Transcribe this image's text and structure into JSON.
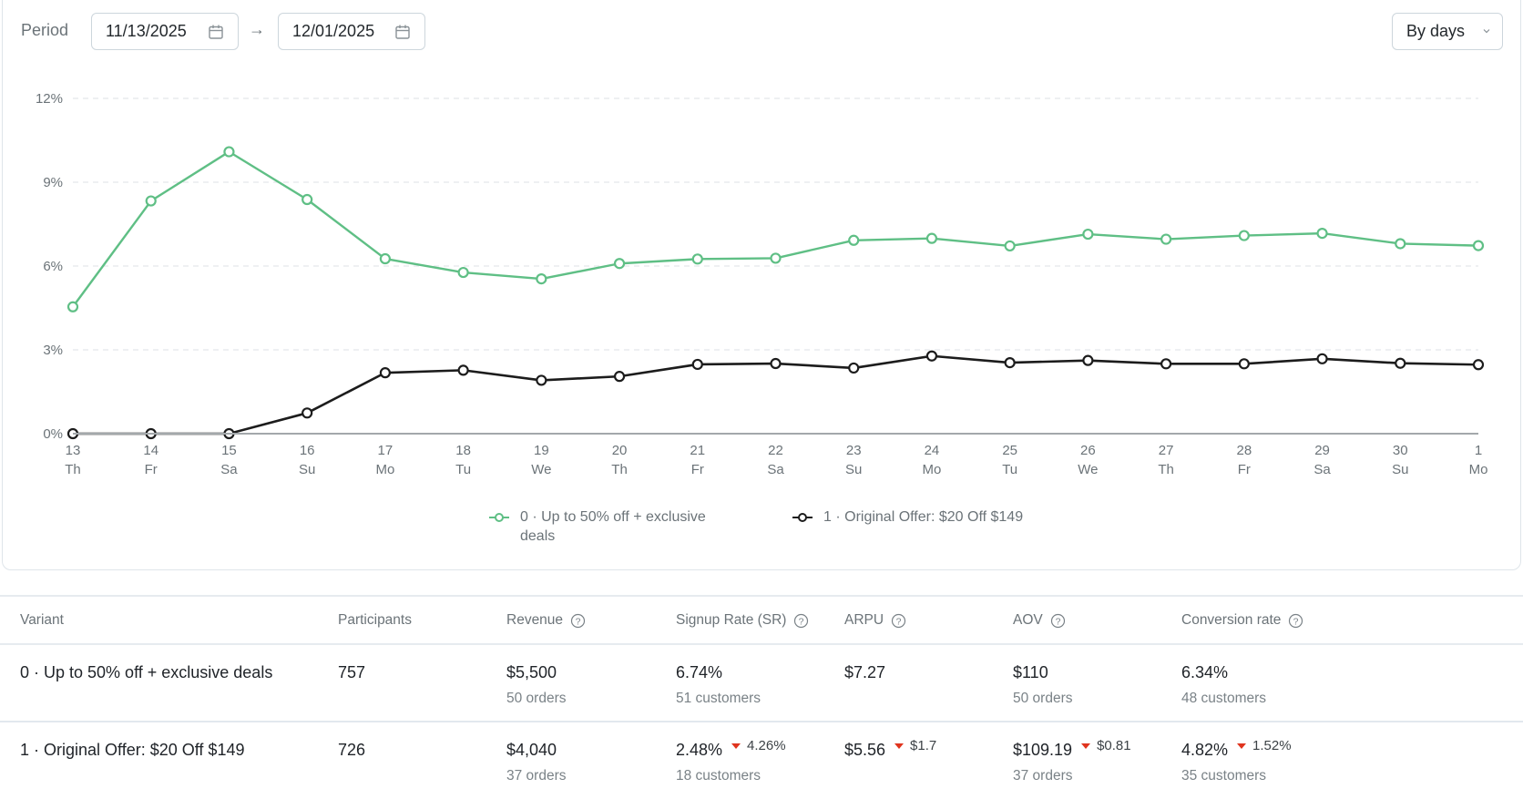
{
  "filters": {
    "period_label": "Period",
    "date_from": "11/13/2025",
    "date_to": "12/01/2025",
    "range_separator": "→",
    "granularity": "By days",
    "calendar_icon": "calendar-icon",
    "dropdown_icon": "chevron-down-icon"
  },
  "colors": {
    "variant_0": "#5fbf85",
    "variant_1": "#1c1c1c",
    "negative_delta": "#e0341e",
    "grid": "#e3e7ea",
    "axis": "#a3a8ab"
  },
  "chart_data": {
    "type": "line",
    "title": "",
    "xlabel": "",
    "ylabel": "",
    "ylim": [
      0,
      12
    ],
    "yticks": [
      "0%",
      "3%",
      "6%",
      "9%",
      "12%"
    ],
    "ytick_values": [
      0,
      3,
      6,
      9,
      12
    ],
    "grid": true,
    "legend_position": "bottom",
    "x": [
      "13",
      "14",
      "15",
      "16",
      "17",
      "18",
      "19",
      "20",
      "21",
      "22",
      "23",
      "24",
      "25",
      "26",
      "27",
      "28",
      "29",
      "30",
      "1"
    ],
    "x_weekday": [
      "Th",
      "Fr",
      "Sa",
      "Su",
      "Mo",
      "Tu",
      "We",
      "Th",
      "Fr",
      "Sa",
      "Su",
      "Mo",
      "Tu",
      "We",
      "Th",
      "Fr",
      "Sa",
      "Su",
      "Mo"
    ],
    "series": [
      {
        "name": "0 · Up to 50% off + exclusive deals",
        "legend_line1": "0 · Up to 50% off + exclusive",
        "legend_line2": "deals",
        "values": [
          4.54,
          8.33,
          10.09,
          8.38,
          6.26,
          5.77,
          5.54,
          6.09,
          6.25,
          6.28,
          6.92,
          6.99,
          6.72,
          7.14,
          6.96,
          7.09,
          7.17,
          6.8,
          6.73
        ]
      },
      {
        "name": "1 · Original Offer: $20 Off $149",
        "legend_line1": "1 · Original Offer: $20 Off $149",
        "legend_line2": "",
        "values": [
          0,
          0,
          0,
          0.74,
          2.18,
          2.27,
          1.91,
          2.05,
          2.48,
          2.51,
          2.35,
          2.78,
          2.54,
          2.62,
          2.5,
          2.5,
          2.68,
          2.52,
          2.47
        ]
      }
    ]
  },
  "table": {
    "headers": {
      "variant": "Variant",
      "participants": "Participants",
      "revenue": "Revenue",
      "signup_rate": "Signup Rate (SR)",
      "arpu": "ARPU",
      "aov": "AOV",
      "conversion_rate": "Conversion rate"
    },
    "rows": [
      {
        "variant": "0 · Up to 50% off + exclusive deals",
        "participants": "757",
        "revenue": "$5,500",
        "revenue_sub": "50 orders",
        "signup_rate": "6.74%",
        "signup_rate_sub": "51 customers",
        "signup_rate_delta": "",
        "arpu": "$7.27",
        "arpu_delta": "",
        "aov": "$110",
        "aov_sub": "50 orders",
        "aov_delta": "",
        "conversion_rate": "6.34%",
        "conversion_rate_sub": "48 customers",
        "conversion_rate_delta": ""
      },
      {
        "variant": "1 · Original Offer: $20 Off $149",
        "participants": "726",
        "revenue": "$4,040",
        "revenue_sub": "37 orders",
        "signup_rate": "2.48%",
        "signup_rate_sub": "18 customers",
        "signup_rate_delta": "4.26%",
        "arpu": "$5.56",
        "arpu_delta": "$1.7",
        "aov": "$109.19",
        "aov_sub": "37 orders",
        "aov_delta": "$0.81",
        "conversion_rate": "4.82%",
        "conversion_rate_sub": "35 customers",
        "conversion_rate_delta": "1.52%"
      }
    ]
  }
}
